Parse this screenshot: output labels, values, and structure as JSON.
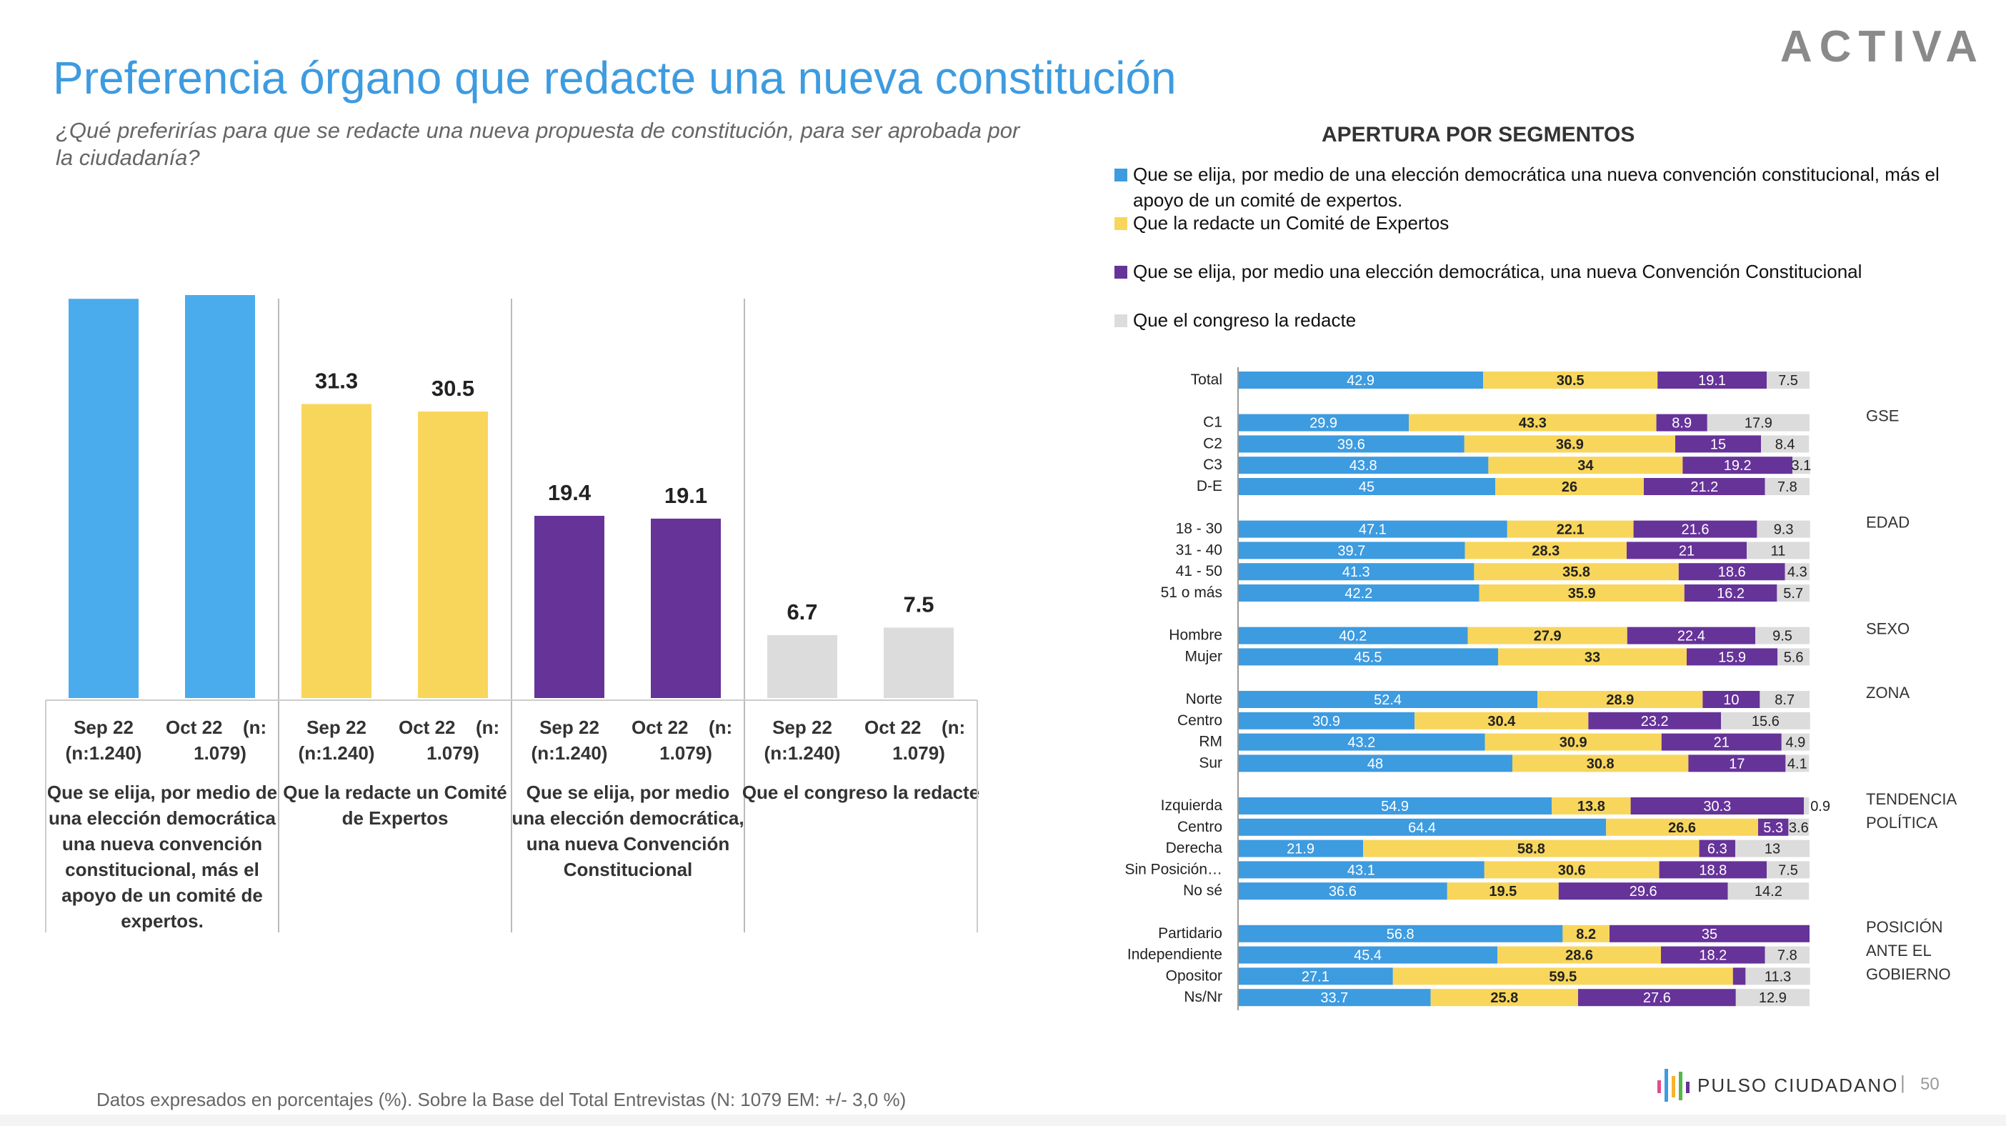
{
  "header": {
    "title": "Preferencia órgano que redacte una nueva constitución",
    "subtitle": "¿Qué preferirías para que se redacte una nueva propuesta de constitución, para ser aprobada por la ciudadanía?",
    "logo_text": "ACTIVA"
  },
  "segments": {
    "title": "APERTURA POR SEGMENTOS",
    "legend": [
      {
        "label": "Que se elija, por medio de una elección democrática una nueva convención constitucional, más el apoyo de un comité de expertos.",
        "color": "#3d9be0"
      },
      {
        "label": "Que la redacte un Comité de Expertos",
        "color": "#f8d65b"
      },
      {
        "label": "Que se elija, por medio una elección democrática, una nueva Convención Constitucional",
        "color": "#663399"
      },
      {
        "label": "Que el congreso la redacte",
        "color": "#dcdcdc"
      }
    ]
  },
  "chart_data": [
    {
      "type": "bar",
      "periods": [
        [
          "Sep 22",
          "(n:1.240)"
        ],
        [
          "Oct 22",
          "(n:",
          "1.079)"
        ]
      ],
      "groups": [
        {
          "name": "Que se elija, por medio de una elección democrática una nueva convención constitucional, más el apoyo de un comité de expertos.",
          "wrapped": [
            "Que se elija, por medio de",
            "una elección democrática",
            "una nueva convención",
            "constitucional, más el",
            "apoyo de un comité de",
            "expertos."
          ],
          "color": "#4aacec",
          "values": [
            42.5,
            42.9
          ]
        },
        {
          "name": "Que la redacte un Comité de Expertos",
          "wrapped": [
            "Que la redacte un Comité",
            "de Expertos"
          ],
          "color": "#f8d65b",
          "values": [
            31.3,
            30.5
          ]
        },
        {
          "name": "Que se elija, por medio una elección democrática, una nueva Convención Constitucional",
          "wrapped": [
            "Que se elija, por medio",
            "una elección democrática,",
            "una nueva Convención",
            "Constitucional"
          ],
          "color": "#663399",
          "values": [
            19.4,
            19.1
          ]
        },
        {
          "name": "Que el congreso la redacte",
          "wrapped": [
            "Que el congreso la redacte"
          ],
          "color": "#dcdcdc",
          "values": [
            6.7,
            7.5
          ]
        }
      ],
      "ylim": [
        0,
        50
      ]
    },
    {
      "type": "bar",
      "orientation": "horizontal-stacked-100",
      "colors": [
        "#3d9be0",
        "#f8d65b",
        "#663399",
        "#dcdcdc"
      ],
      "groups": [
        {
          "name": "",
          "rows": [
            {
              "label": "Total",
              "values": [
                42.9,
                30.5,
                19.1,
                7.5
              ]
            }
          ]
        },
        {
          "name": "GSE",
          "rows": [
            {
              "label": "C1",
              "values": [
                29.9,
                43.3,
                8.9,
                17.9
              ]
            },
            {
              "label": "C2",
              "values": [
                39.6,
                36.9,
                15,
                8.4
              ]
            },
            {
              "label": "C3",
              "values": [
                43.8,
                34,
                19.2,
                3.1
              ]
            },
            {
              "label": "D-E",
              "values": [
                45,
                26,
                21.2,
                7.8
              ]
            }
          ]
        },
        {
          "name": "EDAD",
          "rows": [
            {
              "label": "18 - 30",
              "values": [
                47.1,
                22.1,
                21.6,
                9.3
              ]
            },
            {
              "label": "31 - 40",
              "values": [
                39.7,
                28.3,
                21,
                11
              ]
            },
            {
              "label": "41 - 50",
              "values": [
                41.3,
                35.8,
                18.6,
                4.3
              ]
            },
            {
              "label": "51 o más",
              "values": [
                42.2,
                35.9,
                16.2,
                5.7
              ]
            }
          ]
        },
        {
          "name": "SEXO",
          "rows": [
            {
              "label": "Hombre",
              "values": [
                40.2,
                27.9,
                22.4,
                9.5
              ]
            },
            {
              "label": "Mujer",
              "values": [
                45.5,
                33,
                15.9,
                5.6
              ]
            }
          ]
        },
        {
          "name": "ZONA",
          "rows": [
            {
              "label": "Norte",
              "values": [
                52.4,
                28.9,
                10,
                8.7
              ]
            },
            {
              "label": "Centro",
              "values": [
                30.9,
                30.4,
                23.2,
                15.6
              ]
            },
            {
              "label": "RM",
              "values": [
                43.2,
                30.9,
                21,
                4.9
              ]
            },
            {
              "label": "Sur",
              "values": [
                48,
                30.8,
                17,
                4.1
              ]
            }
          ]
        },
        {
          "name": "TENDENCIA POLÍTICA",
          "rows": [
            {
              "label": "Izquierda",
              "values": [
                54.9,
                13.8,
                30.3,
                0.9
              ]
            },
            {
              "label": "Centro",
              "values": [
                64.4,
                26.6,
                5.3,
                3.6
              ]
            },
            {
              "label": "Derecha",
              "values": [
                21.9,
                58.8,
                6.3,
                13
              ]
            },
            {
              "label": "Sin Posición…",
              "values": [
                43.1,
                30.6,
                18.8,
                7.5
              ]
            },
            {
              "label": "No sé",
              "values": [
                36.6,
                19.5,
                29.6,
                14.2
              ]
            }
          ]
        },
        {
          "name": "POSICIÓN ANTE EL GOBIERNO",
          "rows": [
            {
              "label": "Partidario",
              "values": [
                56.8,
                8.2,
                35,
                null
              ]
            },
            {
              "label": "Independiente",
              "values": [
                45.4,
                28.6,
                18.2,
                7.8
              ]
            },
            {
              "label": "Opositor",
              "values": [
                27.1,
                59.5,
                2.2,
                11.3
              ]
            },
            {
              "label": "Ns/Nr",
              "values": [
                33.7,
                25.8,
                27.6,
                12.9
              ]
            }
          ]
        }
      ],
      "group_label_lines": [
        [],
        [
          "GSE"
        ],
        [
          "EDAD"
        ],
        [
          "SEXO"
        ],
        [
          "ZONA"
        ],
        [
          "TENDENCIA",
          "POLÍTICA"
        ],
        [
          "POSICIÓN",
          "ANTE EL",
          "GOBIERNO"
        ]
      ]
    }
  ],
  "footer": {
    "note": "Datos expresados en porcentajes (%). Sobre la Base del Total Entrevistas (N: 1079  EM: +/- 3,0 %)",
    "brand": "PULSO CIUDADANO",
    "page": "50"
  }
}
